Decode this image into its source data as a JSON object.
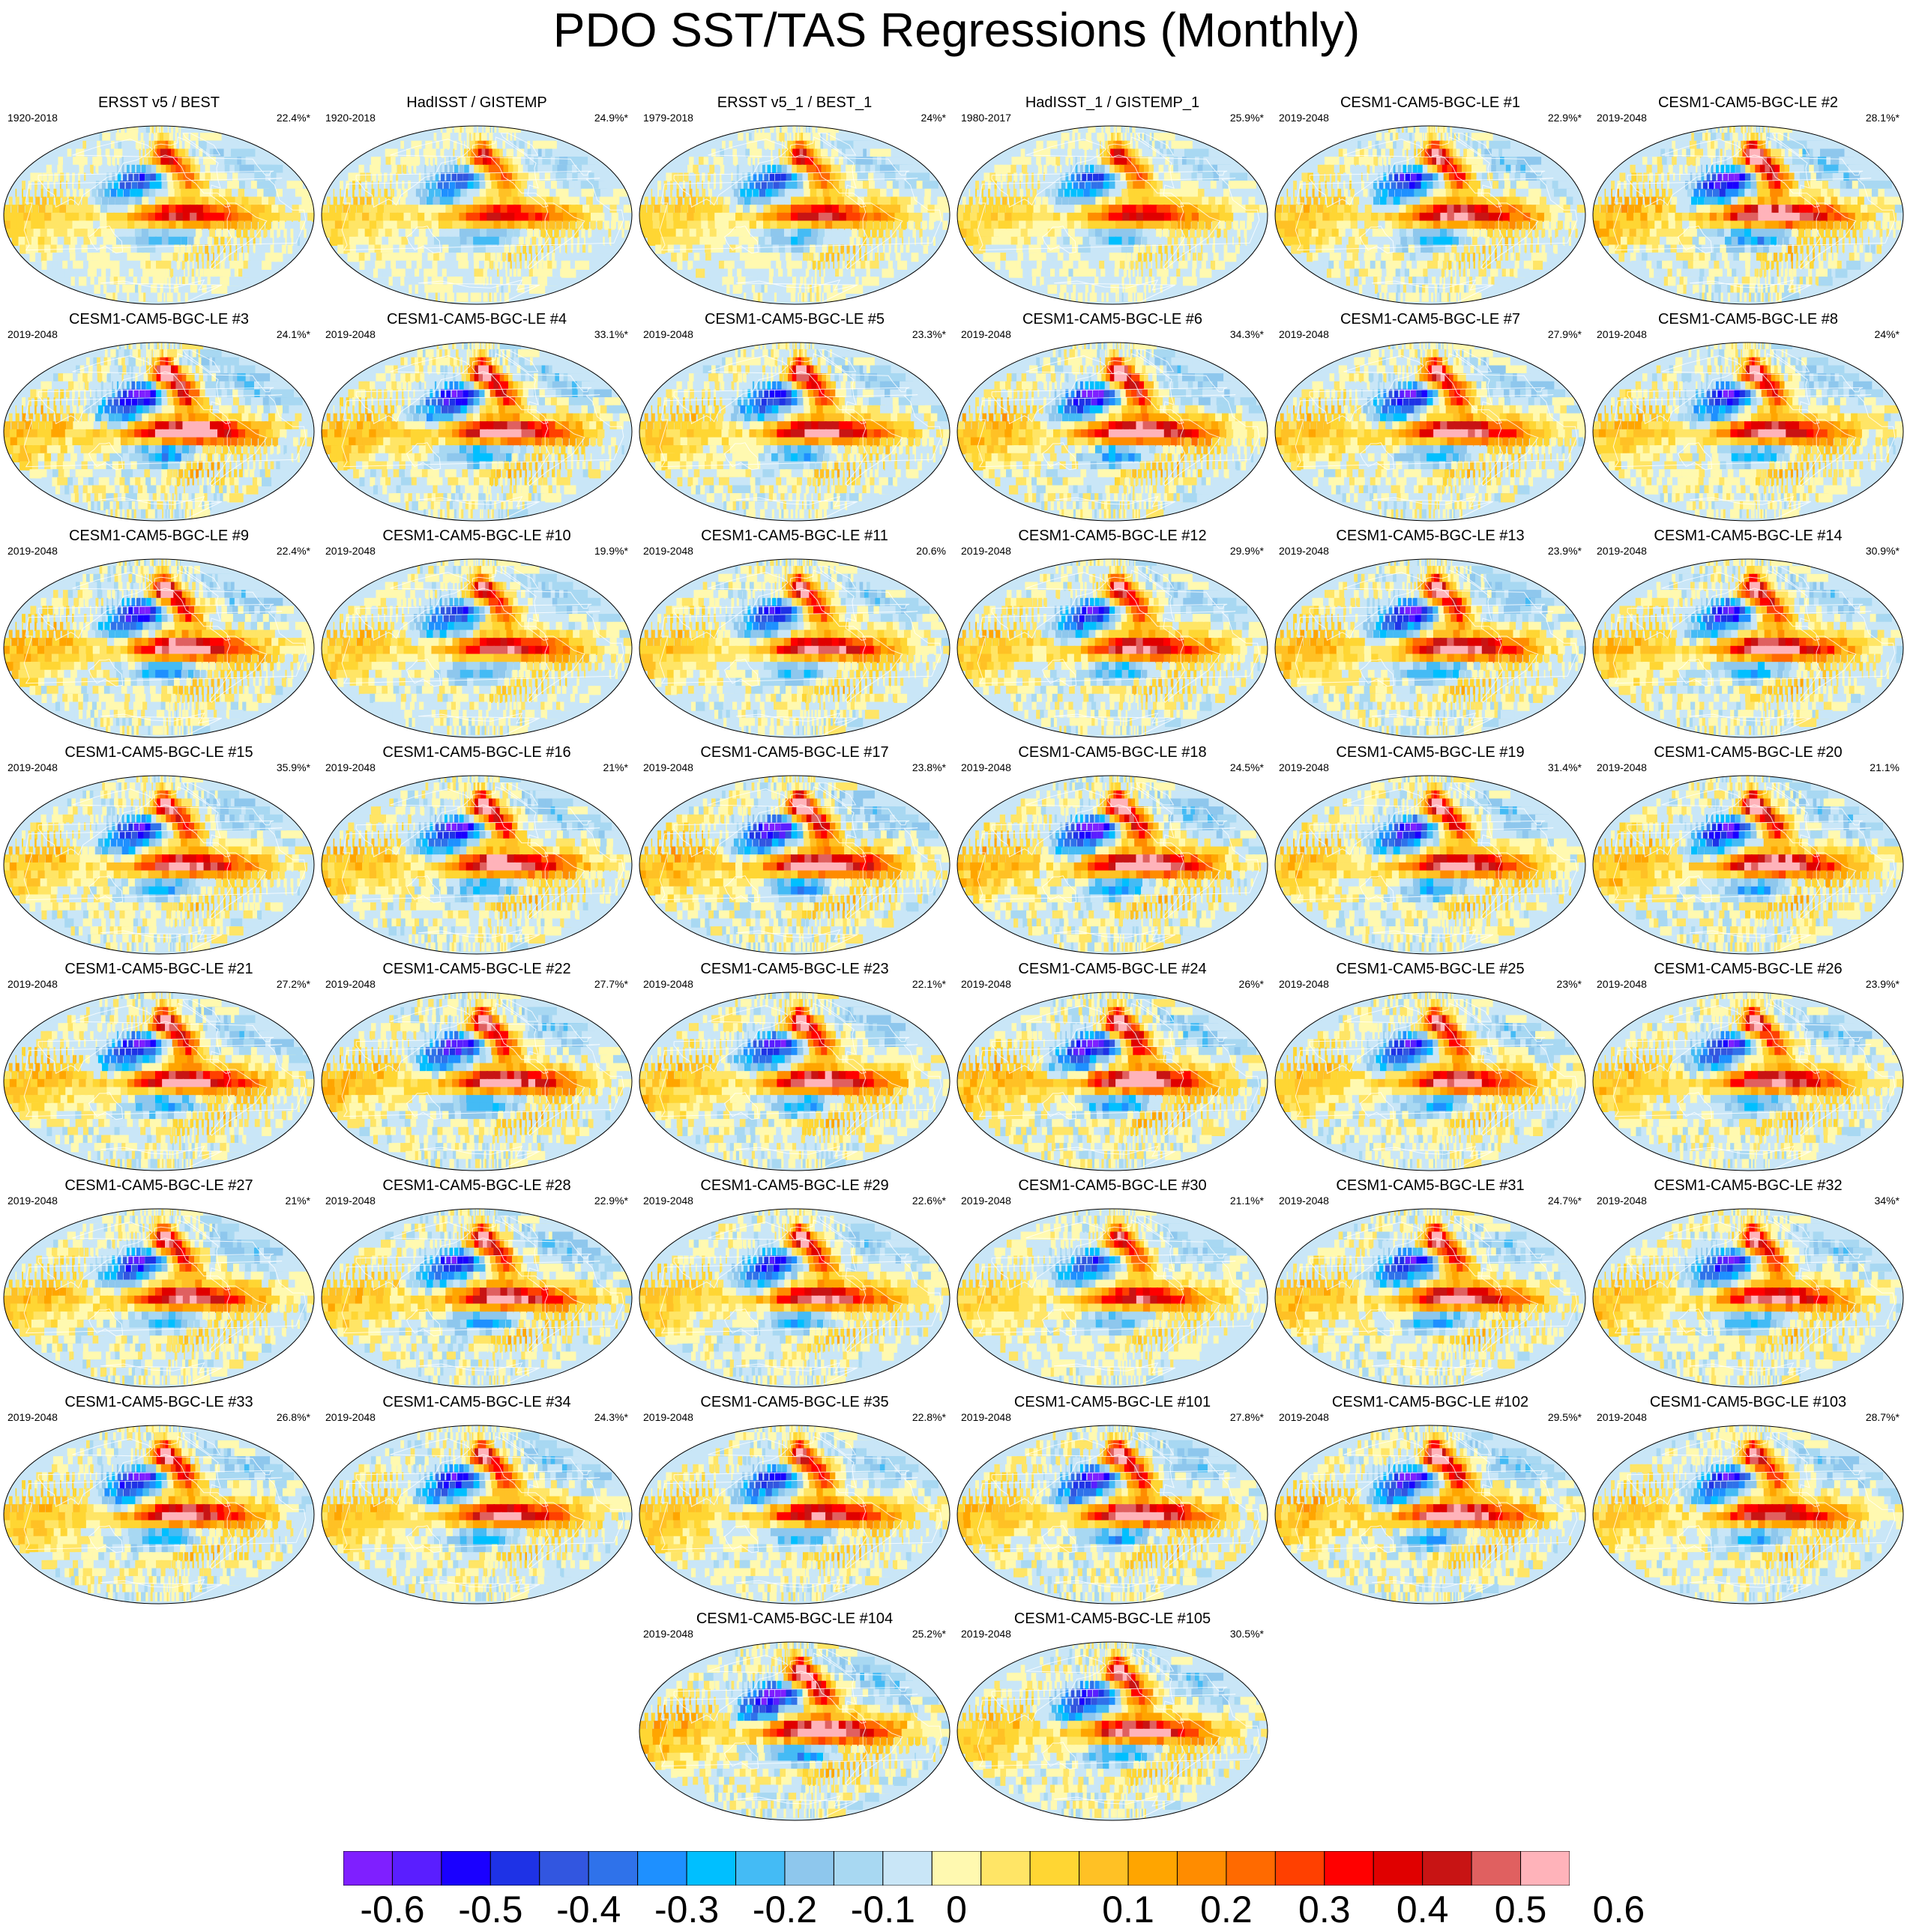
{
  "title": "PDO SST/TAS Regressions (Monthly)",
  "colorbar": {
    "colors": [
      "#7f1fff",
      "#5a1eff",
      "#1a00ff",
      "#1e32e6",
      "#3256e0",
      "#2f72ea",
      "#1e90ff",
      "#00bfff",
      "#44bbf5",
      "#8ec7ed",
      "#a8d8f2",
      "#c9e6f7",
      "#fff9b0",
      "#ffe566",
      "#ffd633",
      "#ffc125",
      "#ffa500",
      "#ff8c00",
      "#ff6a00",
      "#ff4000",
      "#ff0000",
      "#e00000",
      "#c81414",
      "#e06060",
      "#ffb3ba"
    ],
    "labels": [
      "-0.6",
      "-0.5",
      "-0.4",
      "-0.3",
      "-0.2",
      "-0.1",
      "0",
      "0.1",
      "0.2",
      "0.3",
      "0.4",
      "0.5",
      "0.6"
    ]
  },
  "panels": [
    {
      "title": "ERSST v5 / BEST",
      "period": "1920-2018",
      "pct": "22.4%*",
      "amp": 0.9,
      "seed": 1
    },
    {
      "title": "HadISST / GISTEMP",
      "period": "1920-2018",
      "pct": "24.9%*",
      "amp": 0.85,
      "seed": 2
    },
    {
      "title": "ERSST v5_1 / BEST_1",
      "period": "1979-2018",
      "pct": "24%*",
      "amp": 0.9,
      "seed": 3
    },
    {
      "title": "HadISST_1 / GISTEMP_1",
      "period": "1980-2017",
      "pct": "25.9%*",
      "amp": 0.85,
      "seed": 4
    },
    {
      "title": "CESM1-CAM5-BGC-LE #1",
      "period": "2019-2048",
      "pct": "22.9%*",
      "amp": 1.1,
      "seed": 5
    },
    {
      "title": "CESM1-CAM5-BGC-LE #2",
      "period": "2019-2048",
      "pct": "28.1%*",
      "amp": 1.25,
      "seed": 6
    },
    {
      "title": "CESM1-CAM5-BGC-LE #3",
      "period": "2019-2048",
      "pct": "24.1%*",
      "amp": 1.3,
      "seed": 7
    },
    {
      "title": "CESM1-CAM5-BGC-LE #4",
      "period": "2019-2048",
      "pct": "33.1%*",
      "amp": 1.2,
      "seed": 8
    },
    {
      "title": "CESM1-CAM5-BGC-LE #5",
      "period": "2019-2048",
      "pct": "23.3%*",
      "amp": 1.1,
      "seed": 9
    },
    {
      "title": "CESM1-CAM5-BGC-LE #6",
      "period": "2019-2048",
      "pct": "34.3%*",
      "amp": 1.25,
      "seed": 10
    },
    {
      "title": "CESM1-CAM5-BGC-LE #7",
      "period": "2019-2048",
      "pct": "27.9%*",
      "amp": 1.15,
      "seed": 11
    },
    {
      "title": "CESM1-CAM5-BGC-LE #8",
      "period": "2019-2048",
      "pct": "24%*",
      "amp": 1.1,
      "seed": 12
    },
    {
      "title": "CESM1-CAM5-BGC-LE #9",
      "period": "2019-2048",
      "pct": "22.4%*",
      "amp": 1.2,
      "seed": 13
    },
    {
      "title": "CESM1-CAM5-BGC-LE #10",
      "period": "2019-2048",
      "pct": "19.9%*",
      "amp": 1.0,
      "seed": 14
    },
    {
      "title": "CESM1-CAM5-BGC-LE #11",
      "period": "2019-2048",
      "pct": "20.6%",
      "amp": 1.05,
      "seed": 15
    },
    {
      "title": "CESM1-CAM5-BGC-LE #12",
      "period": "2019-2048",
      "pct": "29.9%*",
      "amp": 1.1,
      "seed": 16
    },
    {
      "title": "CESM1-CAM5-BGC-LE #13",
      "period": "2019-2048",
      "pct": "23.9%*",
      "amp": 1.2,
      "seed": 17
    },
    {
      "title": "CESM1-CAM5-BGC-LE #14",
      "period": "2019-2048",
      "pct": "30.9%*",
      "amp": 1.15,
      "seed": 18
    },
    {
      "title": "CESM1-CAM5-BGC-LE #15",
      "period": "2019-2048",
      "pct": "35.9%*",
      "amp": 1.1,
      "seed": 19
    },
    {
      "title": "CESM1-CAM5-BGC-LE #16",
      "period": "2019-2048",
      "pct": "21%*",
      "amp": 1.2,
      "seed": 20
    },
    {
      "title": "CESM1-CAM5-BGC-LE #17",
      "period": "2019-2048",
      "pct": "23.8%*",
      "amp": 1.3,
      "seed": 21
    },
    {
      "title": "CESM1-CAM5-BGC-LE #18",
      "period": "2019-2048",
      "pct": "24.5%*",
      "amp": 1.3,
      "seed": 22
    },
    {
      "title": "CESM1-CAM5-BGC-LE #19",
      "period": "2019-2048",
      "pct": "31.4%*",
      "amp": 1.15,
      "seed": 23
    },
    {
      "title": "CESM1-CAM5-BGC-LE #20",
      "period": "2019-2048",
      "pct": "21.1%",
      "amp": 1.25,
      "seed": 24
    },
    {
      "title": "CESM1-CAM5-BGC-LE #21",
      "period": "2019-2048",
      "pct": "27.2%*",
      "amp": 1.2,
      "seed": 25
    },
    {
      "title": "CESM1-CAM5-BGC-LE #22",
      "period": "2019-2048",
      "pct": "27.7%*",
      "amp": 1.2,
      "seed": 26
    },
    {
      "title": "CESM1-CAM5-BGC-LE #23",
      "period": "2019-2048",
      "pct": "22.1%*",
      "amp": 1.15,
      "seed": 27
    },
    {
      "title": "CESM1-CAM5-BGC-LE #24",
      "period": "2019-2048",
      "pct": "26%*",
      "amp": 1.3,
      "seed": 28
    },
    {
      "title": "CESM1-CAM5-BGC-LE #25",
      "period": "2019-2048",
      "pct": "23%*",
      "amp": 1.1,
      "seed": 29
    },
    {
      "title": "CESM1-CAM5-BGC-LE #26",
      "period": "2019-2048",
      "pct": "23.9%*",
      "amp": 1.1,
      "seed": 30
    },
    {
      "title": "CESM1-CAM5-BGC-LE #27",
      "period": "2019-2048",
      "pct": "21%*",
      "amp": 1.1,
      "seed": 31
    },
    {
      "title": "CESM1-CAM5-BGC-LE #28",
      "period": "2019-2048",
      "pct": "22.9%*",
      "amp": 1.15,
      "seed": 32
    },
    {
      "title": "CESM1-CAM5-BGC-LE #29",
      "period": "2019-2048",
      "pct": "22.6%*",
      "amp": 1.05,
      "seed": 33
    },
    {
      "title": "CESM1-CAM5-BGC-LE #30",
      "period": "2019-2048",
      "pct": "21.1%*",
      "amp": 0.95,
      "seed": 34
    },
    {
      "title": "CESM1-CAM5-BGC-LE #31",
      "period": "2019-2048",
      "pct": "24.7%*",
      "amp": 1.15,
      "seed": 35
    },
    {
      "title": "CESM1-CAM5-BGC-LE #32",
      "period": "2019-2048",
      "pct": "34%*",
      "amp": 1.1,
      "seed": 36
    },
    {
      "title": "CESM1-CAM5-BGC-LE #33",
      "period": "2019-2048",
      "pct": "26.8%*",
      "amp": 1.15,
      "seed": 37
    },
    {
      "title": "CESM1-CAM5-BGC-LE #34",
      "period": "2019-2048",
      "pct": "24.3%*",
      "amp": 1.1,
      "seed": 38
    },
    {
      "title": "CESM1-CAM5-BGC-LE #35",
      "period": "2019-2048",
      "pct": "22.8%*",
      "amp": 1.05,
      "seed": 39
    },
    {
      "title": "CESM1-CAM5-BGC-LE #101",
      "period": "2019-2048",
      "pct": "27.8%*",
      "amp": 1.25,
      "seed": 40
    },
    {
      "title": "CESM1-CAM5-BGC-LE #102",
      "period": "2019-2048",
      "pct": "29.5%*",
      "amp": 1.25,
      "seed": 41
    },
    {
      "title": "CESM1-CAM5-BGC-LE #103",
      "period": "2019-2048",
      "pct": "28.7%*",
      "amp": 1.05,
      "seed": 42
    },
    {
      "title": "CESM1-CAM5-BGC-LE #104",
      "period": "2019-2048",
      "pct": "25.2%*",
      "amp": 1.3,
      "seed": 43
    },
    {
      "title": "CESM1-CAM5-BGC-LE #105",
      "period": "2019-2048",
      "pct": "30.5%*",
      "amp": 1.15,
      "seed": 44
    }
  ]
}
